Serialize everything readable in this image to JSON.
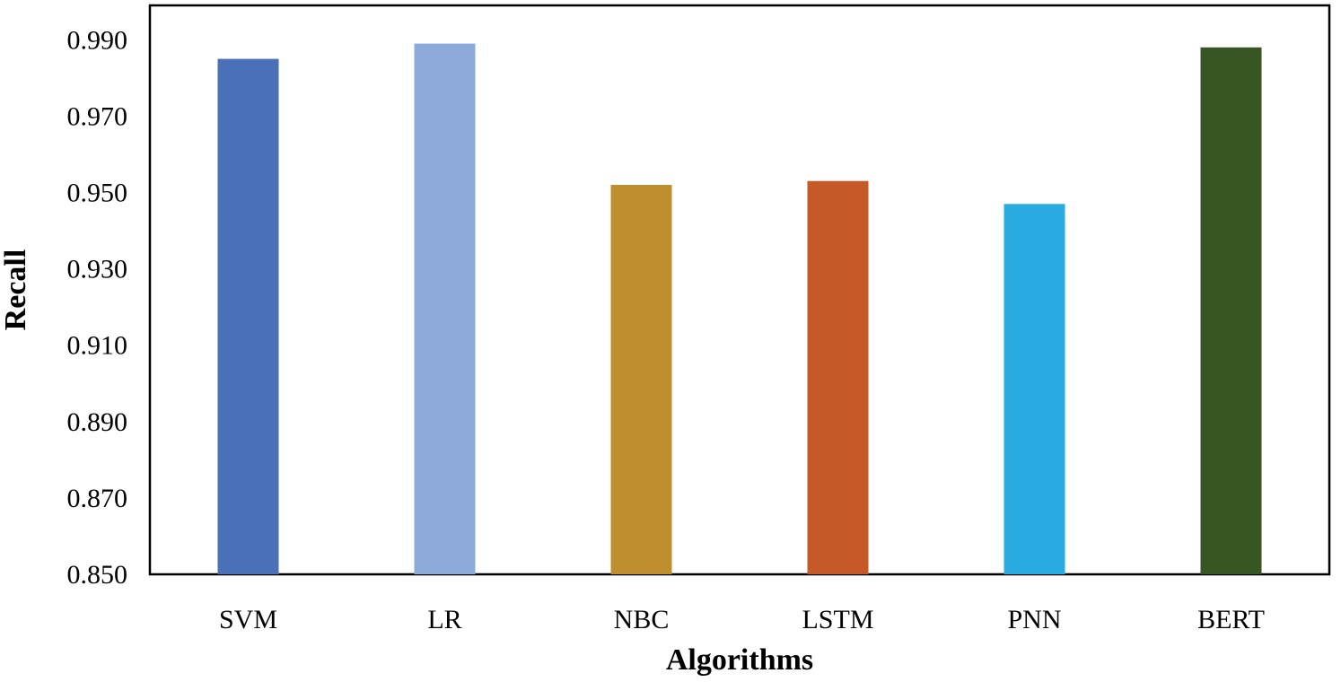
{
  "chart_data": {
    "type": "bar",
    "title": "",
    "xlabel": "Algorithms",
    "ylabel": "Recall",
    "categories": [
      "SVM",
      "LR",
      "NBC",
      "LSTM",
      "PNN",
      "BERT"
    ],
    "values": [
      0.985,
      0.989,
      0.952,
      0.953,
      0.947,
      0.988
    ],
    "colors": [
      "#4a70b7",
      "#8eaadb",
      "#bf8f2f",
      "#c55a28",
      "#29abe2",
      "#375623"
    ],
    "ylim": [
      0.85,
      0.999
    ],
    "yticks": [
      0.85,
      0.87,
      0.89,
      0.91,
      0.93,
      0.95,
      0.97,
      0.99
    ],
    "ytick_labels": [
      "0.850",
      "0.870",
      "0.890",
      "0.910",
      "0.930",
      "0.950",
      "0.970",
      "0.990"
    ],
    "grid": false,
    "legend": "none"
  }
}
